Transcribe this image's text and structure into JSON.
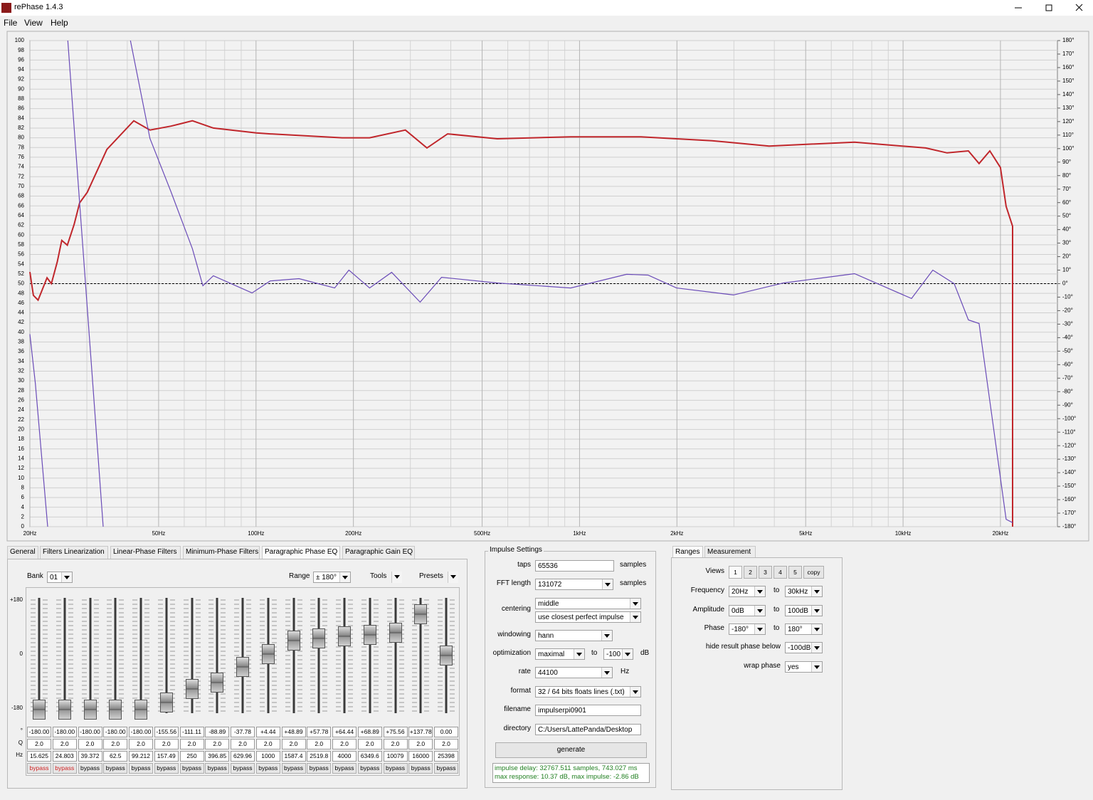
{
  "window": {
    "title": "rePhase 1.4.3"
  },
  "menu": [
    "File",
    "View",
    "Help"
  ],
  "chart_data": {
    "type": "line",
    "xscale": "log",
    "xlim": [
      20,
      30000
    ],
    "xticks": [
      {
        "value": 20,
        "label": "20Hz"
      },
      {
        "value": 50,
        "label": "50Hz"
      },
      {
        "value": 100,
        "label": "100Hz"
      },
      {
        "value": 200,
        "label": "200Hz"
      },
      {
        "value": 500,
        "label": "500Hz"
      },
      {
        "value": 1000,
        "label": "1kHz"
      },
      {
        "value": 2000,
        "label": "2kHz"
      },
      {
        "value": 5000,
        "label": "5kHz"
      },
      {
        "value": 10000,
        "label": "10kHz"
      },
      {
        "value": 20000,
        "label": "20kHz"
      }
    ],
    "x_minor_gridlines": [
      30,
      40,
      60,
      70,
      80,
      90,
      300,
      400,
      600,
      700,
      800,
      900,
      3000,
      4000,
      6000,
      7000,
      8000,
      9000
    ],
    "ylim": [
      0,
      100
    ],
    "yticks": [
      0,
      2,
      4,
      6,
      8,
      10,
      12,
      14,
      16,
      18,
      20,
      22,
      24,
      26,
      28,
      30,
      32,
      34,
      36,
      38,
      40,
      42,
      44,
      46,
      48,
      50,
      52,
      54,
      56,
      58,
      60,
      62,
      64,
      66,
      68,
      70,
      72,
      74,
      76,
      78,
      80,
      82,
      84,
      86,
      88,
      90,
      92,
      94,
      96,
      98,
      100
    ],
    "y2lim": [
      -180,
      180
    ],
    "y2ticks": [
      {
        "value": -180,
        "label": "-180°"
      },
      {
        "value": -170,
        "label": "-170°"
      },
      {
        "value": -160,
        "label": "-160°"
      },
      {
        "value": -150,
        "label": "-150°"
      },
      {
        "value": -140,
        "label": "-140°"
      },
      {
        "value": -130,
        "label": "-130°"
      },
      {
        "value": -120,
        "label": "-120°"
      },
      {
        "value": -110,
        "label": "-110°"
      },
      {
        "value": -100,
        "label": "-100°"
      },
      {
        "value": -90,
        "label": "-90°"
      },
      {
        "value": -80,
        "label": "-80°"
      },
      {
        "value": -70,
        "label": "-70°"
      },
      {
        "value": -60,
        "label": "-60°"
      },
      {
        "value": -50,
        "label": "-50°"
      },
      {
        "value": -40,
        "label": "-40°"
      },
      {
        "value": -30,
        "label": "-30°"
      },
      {
        "value": -20,
        "label": "-20°"
      },
      {
        "value": -10,
        "label": "-10°"
      },
      {
        "value": 0,
        "label": "0°"
      },
      {
        "value": 10,
        "label": "10°"
      },
      {
        "value": 20,
        "label": "20°"
      },
      {
        "value": 30,
        "label": "30°"
      },
      {
        "value": 40,
        "label": "40°"
      },
      {
        "value": 50,
        "label": "50°"
      },
      {
        "value": 60,
        "label": "60°"
      },
      {
        "value": 70,
        "label": "70°"
      },
      {
        "value": 80,
        "label": "80°"
      },
      {
        "value": 90,
        "label": "90°"
      },
      {
        "value": 100,
        "label": "100°"
      },
      {
        "value": 110,
        "label": "110°"
      },
      {
        "value": 120,
        "label": "120°"
      },
      {
        "value": 130,
        "label": "130°"
      },
      {
        "value": 140,
        "label": "140°"
      },
      {
        "value": 150,
        "label": "150°"
      },
      {
        "value": 160,
        "label": "160°"
      },
      {
        "value": 170,
        "label": "170°"
      },
      {
        "value": 180,
        "label": "180°"
      }
    ],
    "grid": true,
    "series": [
      {
        "color": "#c0262b",
        "x": [
          20,
          20.5,
          21.2,
          22.6,
          23.3,
          24.3,
          25.1,
          26.1,
          27.4,
          28.5,
          30.1,
          34.6,
          41.9,
          47.0,
          54.6,
          63.6,
          73.8,
          100.2,
          110.6,
          184.6,
          224.4,
          289.6,
          337.6,
          391,
          557,
          939,
          1548,
          2568,
          3854,
          7080,
          11750,
          13680,
          15920,
          17180,
          18540,
          20000,
          20820,
          21800,
          21800
        ],
        "values": [
          52.4,
          47.6,
          46.6,
          51.2,
          50,
          54.5,
          58.9,
          57.9,
          62.2,
          66.6,
          68.8,
          77.6,
          83.5,
          81.6,
          82.4,
          83.5,
          82,
          81,
          80.8,
          80,
          80,
          81.6,
          77.9,
          80.8,
          79.8,
          80.2,
          80.2,
          79.4,
          78.3,
          79.1,
          77.9,
          76.9,
          77.3,
          74.7,
          77.3,
          73.9,
          65.9,
          61.8,
          0
        ]
      },
      {
        "color": "#6a4bb8",
        "axis": "y2",
        "x": [
          20,
          20.8,
          22.7,
          22.7,
          26.2,
          33.7,
          33.7,
          40.9,
          47.0,
          54.6,
          63.6,
          68.5,
          73.8,
          97.2,
          110.6,
          135.8,
          175,
          193.7,
          224.4,
          262.6,
          321.6,
          374.5,
          557,
          939,
          1398,
          1628,
          1994,
          2992,
          4266,
          7080,
          10620,
          12360,
          14390,
          15920,
          17180,
          19020,
          20820,
          21800
        ],
        "values": [
          -37.4,
          -74,
          -180,
          null,
          180,
          -180,
          null,
          180,
          107.5,
          68,
          25.8,
          -1.6,
          5.8,
          -6.9,
          2,
          3.7,
          -3.2,
          10,
          -3.2,
          8.4,
          -13.7,
          4.7,
          0.5,
          -3.2,
          6.9,
          6.3,
          -3.2,
          -8.4,
          0.5,
          7.4,
          -11,
          10,
          0,
          -26.9,
          -29.5,
          -106,
          -174.5,
          -177
        ]
      }
    ]
  },
  "eq_panel": {
    "tabs": [
      "General",
      "Filters Linearization",
      "Linear-Phase Filters",
      "Minimum-Phase Filters",
      "Paragraphic Phase EQ",
      "Paragraphic Gain EQ"
    ],
    "active_tab": 4,
    "bank_label": "Bank",
    "bank": "01",
    "range_label": "Range",
    "range": "± 180°",
    "tools": "Tools",
    "presets": "Presets",
    "scale_labels": [
      "+180",
      "0",
      "-180"
    ],
    "row_labels": [
      "°",
      "Q",
      "Hz"
    ],
    "phase": [
      "-180.00",
      "-180.00",
      "-180.00",
      "-180.00",
      "-180.00",
      "-155.56",
      "-111.11",
      "-88.89",
      "-37.78",
      "+4.44",
      "+48.89",
      "+57.78",
      "+64.44",
      "+68.89",
      "+75.56",
      "+137.78",
      "0.00"
    ],
    "q": [
      "2.0",
      "2.0",
      "2.0",
      "2.0",
      "2.0",
      "2.0",
      "2.0",
      "2.0",
      "2.0",
      "2.0",
      "2.0",
      "2.0",
      "2.0",
      "2.0",
      "2.0",
      "2.0",
      "2.0"
    ],
    "hz": [
      "15.625",
      "24.803",
      "39.372",
      "62.5",
      "99.212",
      "157.49",
      "250",
      "396.85",
      "629.96",
      "1000",
      "1587.4",
      "2519.8",
      "4000",
      "6349.6",
      "10079",
      "16000",
      "25398"
    ],
    "bypass": [
      "bypass",
      "bypass",
      "bypass",
      "bypass",
      "bypass",
      "bypass",
      "bypass",
      "bypass",
      "bypass",
      "bypass",
      "bypass",
      "bypass",
      "bypass",
      "bypass",
      "bypass",
      "bypass",
      "bypass"
    ],
    "bypass_active": [
      true,
      true,
      false,
      false,
      false,
      false,
      false,
      false,
      false,
      false,
      false,
      false,
      false,
      false,
      false,
      false,
      false
    ]
  },
  "impulse": {
    "title": "Impulse Settings",
    "taps_label": "taps",
    "taps": "65536",
    "taps_unit": "samples",
    "fft_label": "FFT length",
    "fft": "131072",
    "fft_unit": "samples",
    "centering_label": "centering",
    "centering": "middle",
    "centering_mode": "use closest perfect impulse",
    "windowing_label": "windowing",
    "windowing": "hann",
    "optimization_label": "optimization",
    "optimization": "maximal",
    "optimization_to": "to",
    "optimization_limit": "-100",
    "optimization_unit": "dB",
    "rate_label": "rate",
    "rate": "44100",
    "rate_unit": "Hz",
    "format_label": "format",
    "format": "32 / 64 bits floats lines (.txt)",
    "filename_label": "filename",
    "filename": "impulserpi0901",
    "directory_label": "directory",
    "directory": "C:/Users/LattePanda/Desktop",
    "generate": "generate",
    "status": [
      "impulse delay: 32767.511 samples, 743.027 ms",
      "max response: 10.37 dB, max impulse: -2.86 dB"
    ]
  },
  "ranges": {
    "tabs": [
      "Ranges",
      "Measurement"
    ],
    "views_label": "Views",
    "views": [
      "1",
      "2",
      "3",
      "4",
      "5",
      "copy"
    ],
    "frequency_label": "Frequency",
    "frequency_from": "20Hz",
    "frequency_to": "30kHz",
    "amplitude_label": "Amplitude",
    "amplitude_from": "0dB",
    "amplitude_to": "100dB",
    "phase_label": "Phase",
    "phase_from": "-180°",
    "phase_to": "180°",
    "to": "to",
    "hide_label": "hide result phase below",
    "hide": "-100dB",
    "wrap_label": "wrap phase",
    "wrap": "yes"
  }
}
